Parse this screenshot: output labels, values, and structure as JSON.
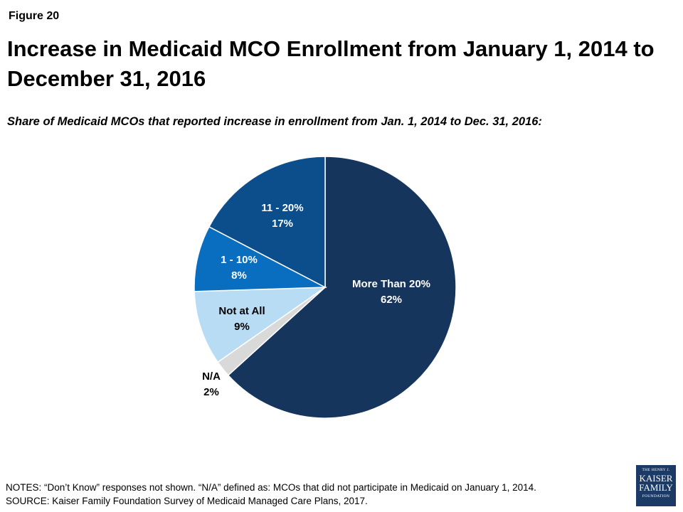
{
  "figure_label": "Figure 20",
  "title": "Increase in Medicaid MCO Enrollment from January 1, 2014 to December 31, 2016",
  "subtitle": "Share of Medicaid MCOs that reported increase in enrollment from Jan. 1, 2014 to Dec. 31, 2016:",
  "chart_data": {
    "type": "pie",
    "title": "Increase in Medicaid MCO Enrollment from January 1, 2014 to December 31, 2016",
    "subtitle": "Share of Medicaid MCOs that reported increase in enrollment from Jan. 1, 2014 to Dec. 31, 2016:",
    "slices": [
      {
        "label": "More Than 20%",
        "value": 62,
        "value_label": "62%",
        "color": "#15355d",
        "text_color": "#ffffff"
      },
      {
        "label": "N/A",
        "value": 2,
        "value_label": "2%",
        "color": "#d9d9d9",
        "text_color": "#000000"
      },
      {
        "label": "Not at All",
        "value": 9,
        "value_label": "9%",
        "color": "#b8dcf4",
        "text_color": "#000000"
      },
      {
        "label": "1 - 10%",
        "value": 8,
        "value_label": "8%",
        "color": "#0a6ec0",
        "text_color": "#ffffff"
      },
      {
        "label": "11 - 20%",
        "value": 17,
        "value_label": "17%",
        "color": "#0c4e8c",
        "text_color": "#ffffff"
      }
    ]
  },
  "notes": {
    "line1": "NOTES: “Don’t Know” responses not shown. “N/A” defined as: MCOs that did not participate in Medicaid on January 1, 2014.",
    "line2": "SOURCE: Kaiser Family Foundation Survey of Medicaid Managed Care Plans, 2017."
  },
  "logo": {
    "line1": "THE HENRY J.",
    "line2": "KAISER",
    "line3": "FAMILY",
    "line4": "FOUNDATION"
  }
}
